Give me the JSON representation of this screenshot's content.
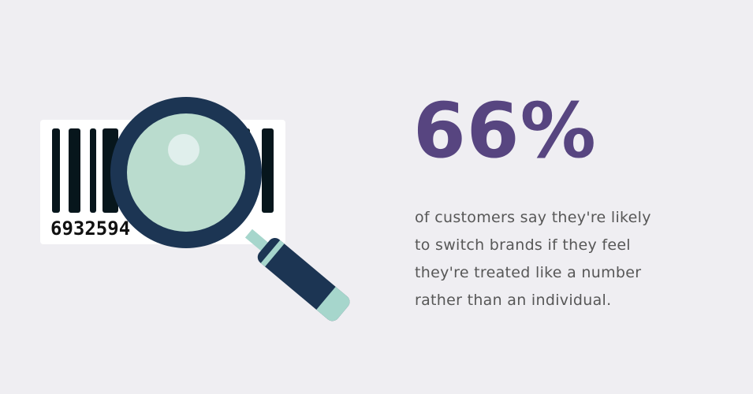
{
  "illustration": {
    "barcode_number": "6932594",
    "icon": "magnifying-glass-over-barcode"
  },
  "stat": {
    "value": "66%"
  },
  "description": {
    "lines": [
      "of customers say they're likely",
      "to switch brands if they feel",
      "they're treated like a number",
      "rather than an individual."
    ]
  },
  "colors": {
    "background": "#efeef2",
    "accent": "#574580",
    "lens_frame": "#1c3553",
    "lens_glass": "#badcce",
    "handle_band": "#a6d6cc"
  }
}
